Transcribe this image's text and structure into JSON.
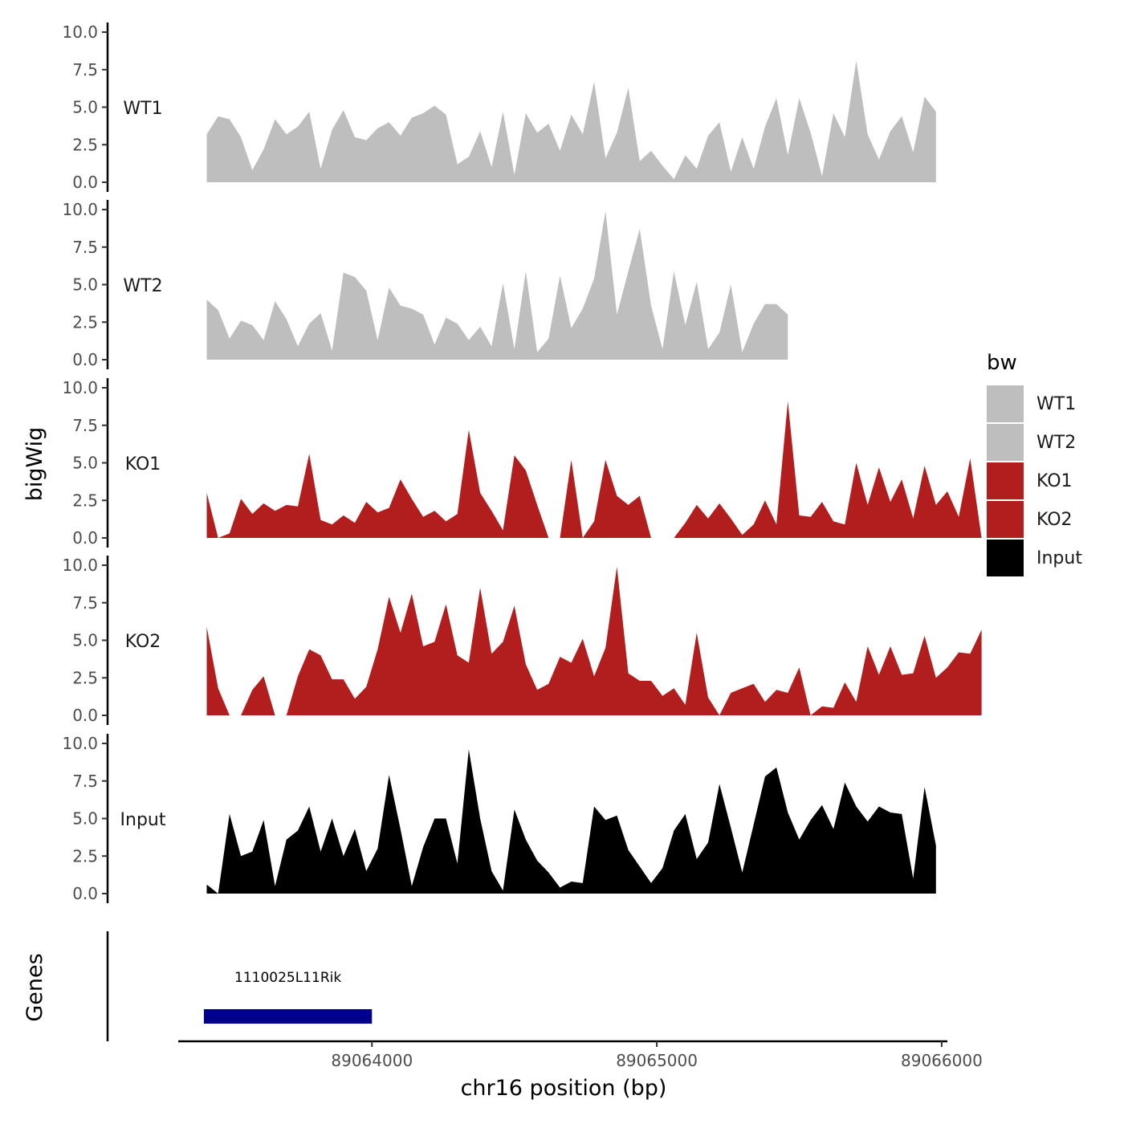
{
  "chart_data": {
    "type": "area",
    "xlabel": "chr16 position (bp)",
    "ylabel": "bigWig",
    "genes_label": "Genes",
    "xlim": [
      89063320,
      89066020
    ],
    "x_ticks": [
      {
        "value": 89064000,
        "label": "89064000"
      },
      {
        "value": 89065000,
        "label": "89065000"
      },
      {
        "value": 89066000,
        "label": "89066000"
      }
    ],
    "ylim": [
      0,
      10
    ],
    "y_ticks": [
      {
        "value": 0,
        "label": "0.0"
      },
      {
        "value": 2.5,
        "label": "2.5"
      },
      {
        "value": 5,
        "label": "5.0"
      },
      {
        "value": 7.5,
        "label": "7.5"
      },
      {
        "value": 10,
        "label": "10.0"
      }
    ],
    "x_start": 89063420,
    "x_step": 40,
    "series": [
      {
        "name": "WT1",
        "label": "WT1",
        "color": "#bebebe",
        "values": [
          3.2,
          4.4,
          4.2,
          3.0,
          0.8,
          2.2,
          4.2,
          3.2,
          3.7,
          4.7,
          0.9,
          3.5,
          4.8,
          3.0,
          2.8,
          3.6,
          4.0,
          3.1,
          4.3,
          4.6,
          5.1,
          4.5,
          1.2,
          1.7,
          3.4,
          1.0,
          4.7,
          0.5,
          4.6,
          3.3,
          3.9,
          2.1,
          4.5,
          3.2,
          6.7,
          1.6,
          3.3,
          6.3,
          1.4,
          2.1,
          1.1,
          0.2,
          1.8,
          0.9,
          3.1,
          4.0,
          0.7,
          3.0,
          0.9,
          3.7,
          5.6,
          1.8,
          5.6,
          3.3,
          0.4,
          4.6,
          3.0,
          8.1,
          3.2,
          1.5,
          3.4,
          4.4,
          2.0,
          5.7,
          4.7
        ]
      },
      {
        "name": "WT2",
        "label": "WT2",
        "color": "#bebebe",
        "values": [
          4.0,
          3.3,
          1.4,
          2.6,
          2.3,
          1.3,
          3.9,
          2.7,
          0.9,
          2.4,
          3.1,
          0.6,
          5.8,
          5.5,
          4.6,
          1.3,
          4.8,
          3.6,
          3.4,
          3.0,
          1.0,
          2.8,
          2.4,
          1.3,
          2.2,
          0.9,
          5.1,
          0.7,
          5.9,
          0.5,
          1.4,
          5.6,
          2.1,
          3.4,
          5.4,
          9.9,
          3.0,
          5.9,
          8.7,
          3.6,
          0.7,
          5.9,
          2.3,
          5.2,
          0.7,
          1.8,
          5.0,
          0.5,
          2.4,
          3.7,
          3.7,
          3.0
        ]
      },
      {
        "name": "KO1",
        "label": "KO1",
        "color": "#b21e1e",
        "values": [
          3.0,
          0.0,
          0.3,
          2.6,
          1.6,
          2.3,
          1.8,
          2.2,
          2.1,
          5.6,
          1.2,
          0.9,
          1.5,
          1.0,
          2.4,
          1.7,
          2.0,
          3.9,
          2.6,
          1.4,
          1.8,
          1.1,
          1.6,
          7.2,
          3.0,
          1.8,
          0.5,
          5.5,
          4.5,
          2.2,
          0.0,
          0.0,
          5.2,
          0.0,
          1.1,
          5.2,
          2.8,
          2.2,
          2.8,
          0.0,
          0.0,
          0.0,
          1.0,
          2.2,
          1.3,
          2.3,
          1.3,
          0.2,
          0.9,
          2.5,
          0.9,
          9.1,
          1.5,
          1.4,
          2.4,
          1.1,
          0.9,
          5.0,
          2.2,
          4.7,
          2.4,
          3.9,
          1.3,
          4.8,
          2.2,
          3.1,
          1.4,
          5.3,
          0.0
        ]
      },
      {
        "name": "KO2",
        "label": "KO2",
        "color": "#b21e1e",
        "values": [
          5.9,
          1.8,
          0.0,
          0.0,
          1.7,
          2.6,
          0.0,
          0.0,
          2.6,
          4.4,
          4.0,
          2.4,
          2.4,
          1.1,
          1.9,
          4.4,
          7.9,
          5.5,
          8.1,
          4.6,
          4.9,
          7.4,
          4.0,
          3.5,
          8.5,
          4.1,
          4.9,
          7.3,
          3.4,
          1.7,
          2.1,
          3.9,
          3.5,
          5.1,
          2.6,
          4.5,
          9.9,
          2.8,
          2.3,
          2.3,
          1.3,
          1.8,
          0.7,
          5.5,
          1.2,
          0.0,
          1.5,
          1.8,
          2.1,
          0.9,
          1.7,
          1.5,
          3.2,
          0.0,
          0.6,
          0.5,
          2.2,
          0.9,
          4.6,
          2.7,
          4.6,
          2.7,
          2.8,
          5.3,
          2.5,
          3.2,
          4.2,
          4.1,
          5.7
        ]
      },
      {
        "name": "Input",
        "label": "Input",
        "color": "#000000",
        "values": [
          0.6,
          0.0,
          5.3,
          2.5,
          2.8,
          4.9,
          0.5,
          3.6,
          4.2,
          5.8,
          2.8,
          5.0,
          2.5,
          4.3,
          1.5,
          3.0,
          7.9,
          4.3,
          0.5,
          3.1,
          5.0,
          5.0,
          2.0,
          9.6,
          5.0,
          1.5,
          0.2,
          5.6,
          3.6,
          2.2,
          1.4,
          0.4,
          0.8,
          0.7,
          5.8,
          4.9,
          5.2,
          2.9,
          1.8,
          0.7,
          1.7,
          4.2,
          5.3,
          2.3,
          3.4,
          7.3,
          4.4,
          1.4,
          4.6,
          7.8,
          8.4,
          5.4,
          3.6,
          4.9,
          5.9,
          4.3,
          7.4,
          5.8,
          4.8,
          5.8,
          5.4,
          5.3,
          1.0,
          7.1,
          3.2
        ]
      }
    ],
    "legend": {
      "title": "bw",
      "position": "right",
      "entries": [
        {
          "label": "WT1",
          "color": "#bebebe"
        },
        {
          "label": "WT2",
          "color": "#bebebe"
        },
        {
          "label": "KO1",
          "color": "#b21e1e"
        },
        {
          "label": "KO2",
          "color": "#b21e1e"
        },
        {
          "label": "Input",
          "color": "#000000"
        }
      ]
    },
    "gene": {
      "name": "1110025L11Rik",
      "start": 89063410,
      "end": 89064000,
      "color": "#00008b"
    }
  }
}
